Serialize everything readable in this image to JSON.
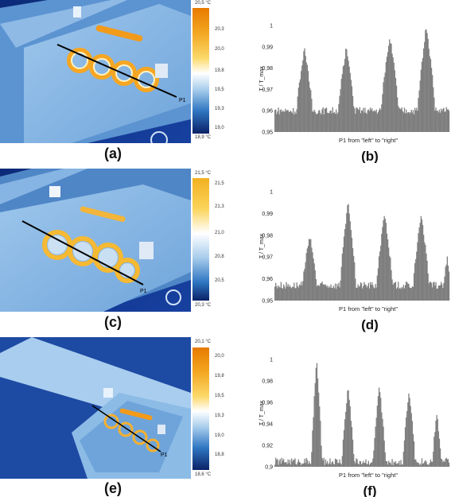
{
  "panels": [
    {
      "label": "(a)",
      "colorbar": {
        "max": "20,5 °C",
        "min": "18,9 °C",
        "ticks": [
          "20,3",
          "20,0",
          "19,8",
          "19,5",
          "19,3",
          "19,0"
        ]
      },
      "probe_label": "P1"
    },
    {
      "label": "(b)",
      "chart_data": {
        "type": "bar",
        "ylabel": "T / T_max",
        "xlabel": "P1 from \"left\" to \"right\"",
        "ylim": [
          0.95,
          1.0
        ],
        "yticks": [
          "1",
          "0,99",
          "0,98",
          "0,97",
          "0,96",
          "0,95"
        ],
        "baseline": 0.96,
        "peaks": [
          {
            "center": 0.17,
            "width": 0.09,
            "height": 0.99
          },
          {
            "center": 0.41,
            "width": 0.09,
            "height": 0.99
          },
          {
            "center": 0.66,
            "width": 0.1,
            "height": 0.995
          },
          {
            "center": 0.87,
            "width": 0.1,
            "height": 1.0
          }
        ]
      }
    },
    {
      "label": "(c)",
      "colorbar": {
        "max": "21,5 °C",
        "min": "20,3 °C",
        "ticks": [
          "21,5",
          "21,3",
          "21,0",
          "20,8",
          "20,5"
        ]
      },
      "probe_label": "P1"
    },
    {
      "label": "(d)",
      "chart_data": {
        "type": "bar",
        "ylabel": "T / T_max",
        "xlabel": "P1 from \"left\" to \"right\"",
        "ylim": [
          0.95,
          1.0
        ],
        "yticks": [
          "1",
          "0,99",
          "0,98",
          "0,97",
          "0,96",
          "0,95"
        ],
        "baseline": 0.957,
        "peaks": [
          {
            "center": 0.2,
            "width": 0.08,
            "height": 0.98
          },
          {
            "center": 0.42,
            "width": 0.09,
            "height": 0.995
          },
          {
            "center": 0.63,
            "width": 0.09,
            "height": 0.99
          },
          {
            "center": 0.84,
            "width": 0.09,
            "height": 0.99
          },
          {
            "center": 0.99,
            "width": 0.04,
            "height": 0.97
          }
        ]
      }
    },
    {
      "label": "(e)",
      "colorbar": {
        "max": "20,1 °C",
        "min": "18,6 °C",
        "ticks": [
          "20,0",
          "19,8",
          "19,5",
          "19,3",
          "19,0",
          "18,8"
        ]
      },
      "probe_label": "P1"
    },
    {
      "label": "(f)",
      "chart_data": {
        "type": "bar",
        "ylabel": "T / T_max",
        "xlabel": "P1 from \"left\" to \"right\"",
        "ylim": [
          0.9,
          1.0
        ],
        "yticks": [
          "1",
          "0,98",
          "0,96",
          "0,94",
          "0,92",
          "0,9"
        ],
        "baseline": 0.905,
        "peaks": [
          {
            "center": 0.24,
            "width": 0.06,
            "height": 1.0
          },
          {
            "center": 0.42,
            "width": 0.07,
            "height": 0.975
          },
          {
            "center": 0.6,
            "width": 0.07,
            "height": 0.975
          },
          {
            "center": 0.77,
            "width": 0.07,
            "height": 0.97
          },
          {
            "center": 0.93,
            "width": 0.05,
            "height": 0.95
          }
        ]
      }
    }
  ]
}
